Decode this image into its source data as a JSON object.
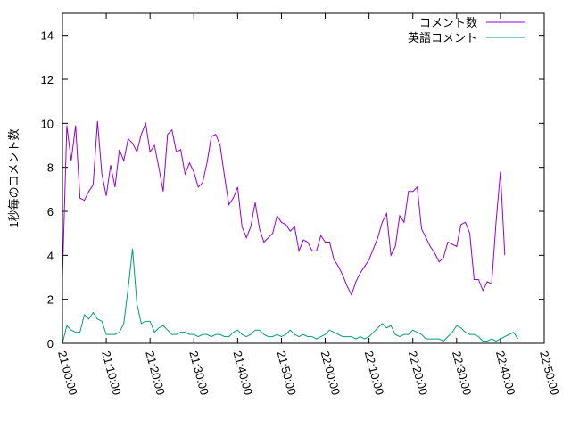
{
  "chart_data": {
    "type": "line",
    "title": "",
    "xlabel": "",
    "ylabel": "1秒毎のコメント数",
    "xlim": [
      "21:00:00",
      "22:50:00"
    ],
    "ylim": [
      0,
      15
    ],
    "x_ticks": [
      "21:00:00",
      "21:10:00",
      "21:20:00",
      "21:30:00",
      "21:40:00",
      "21:50:00",
      "22:00:00",
      "22:10:00",
      "22:20:00",
      "22:30:00",
      "22:40:00",
      "22:50:00"
    ],
    "y_ticks": [
      "0",
      "2",
      "4",
      "6",
      "8",
      "10",
      "12",
      "14"
    ],
    "grid": false,
    "legend_position": "top-right",
    "x_start": "21:00:00",
    "x_step_seconds": 60,
    "series": [
      {
        "name": "コメント数",
        "color": "#9400d3",
        "values": [
          3.0,
          9.9,
          8.3,
          9.9,
          6.6,
          6.5,
          6.9,
          7.2,
          10.1,
          7.7,
          6.7,
          8.1,
          7.1,
          8.8,
          8.3,
          9.3,
          9.1,
          8.7,
          9.5,
          10.0,
          8.7,
          9.0,
          8.0,
          6.9,
          9.5,
          9.7,
          8.7,
          8.8,
          7.7,
          8.2,
          7.8,
          7.1,
          7.3,
          8.2,
          9.4,
          9.5,
          9.0,
          7.6,
          6.3,
          6.6,
          7.1,
          5.3,
          4.8,
          5.3,
          6.4,
          5.2,
          4.6,
          4.8,
          5.0,
          5.8,
          5.5,
          5.4,
          5.1,
          5.3,
          4.2,
          4.7,
          4.6,
          4.2,
          4.2,
          4.9,
          4.6,
          4.6,
          3.8,
          3.5,
          3.1,
          2.6,
          2.2,
          2.8,
          3.2,
          3.5,
          3.8,
          4.3,
          4.8,
          5.5,
          5.9,
          4.0,
          4.4,
          5.8,
          5.5,
          6.9,
          6.9,
          7.1,
          5.2,
          4.8,
          4.4,
          4.1,
          3.7,
          3.9,
          4.6,
          4.5,
          4.4,
          5.4,
          5.5,
          5.0,
          2.9,
          2.9,
          2.4,
          2.8,
          2.7,
          5.5,
          7.8,
          4.0
        ]
      },
      {
        "name": "英語コメント",
        "color": "#009e73",
        "values": [
          0.0,
          0.8,
          0.6,
          0.5,
          0.5,
          1.3,
          1.1,
          1.4,
          1.1,
          1.0,
          0.4,
          0.4,
          0.4,
          0.5,
          0.9,
          2.5,
          4.3,
          1.8,
          0.9,
          1.0,
          1.0,
          0.5,
          0.7,
          0.8,
          0.6,
          0.4,
          0.4,
          0.5,
          0.5,
          0.4,
          0.4,
          0.3,
          0.4,
          0.4,
          0.3,
          0.4,
          0.4,
          0.3,
          0.3,
          0.5,
          0.6,
          0.4,
          0.3,
          0.4,
          0.6,
          0.6,
          0.4,
          0.3,
          0.3,
          0.4,
          0.3,
          0.4,
          0.6,
          0.4,
          0.3,
          0.4,
          0.3,
          0.3,
          0.2,
          0.3,
          0.4,
          0.6,
          0.5,
          0.4,
          0.3,
          0.3,
          0.3,
          0.2,
          0.3,
          0.2,
          0.3,
          0.5,
          0.7,
          0.9,
          0.7,
          0.8,
          0.4,
          0.3,
          0.4,
          0.4,
          0.6,
          0.5,
          0.4,
          0.2,
          0.2,
          0.2,
          0.2,
          0.1,
          0.3,
          0.5,
          0.8,
          0.7,
          0.5,
          0.4,
          0.4,
          0.3,
          0.1,
          0.1,
          0.2,
          0.1,
          0.2,
          0.3,
          0.4,
          0.5,
          0.2
        ]
      }
    ]
  }
}
